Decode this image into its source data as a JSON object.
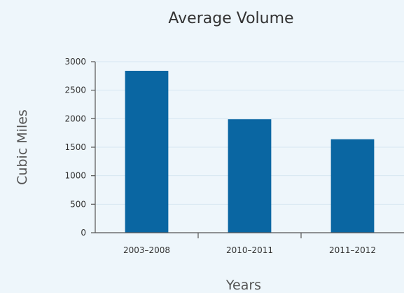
{
  "chart_data": {
    "type": "bar",
    "title": "Average Volume",
    "xlabel": "Years",
    "ylabel": "Cubic Miles",
    "categories": [
      "2003–2008",
      "2010–2011",
      "2011–2012"
    ],
    "values": [
      2840,
      1990,
      1640
    ],
    "ylim": [
      0,
      3000
    ],
    "yticks": [
      0,
      500,
      1000,
      1500,
      2000,
      2500,
      3000
    ],
    "grid": true,
    "legend": "none",
    "bar_color": "#0a66a2",
    "background_color": "#eef6fb"
  }
}
